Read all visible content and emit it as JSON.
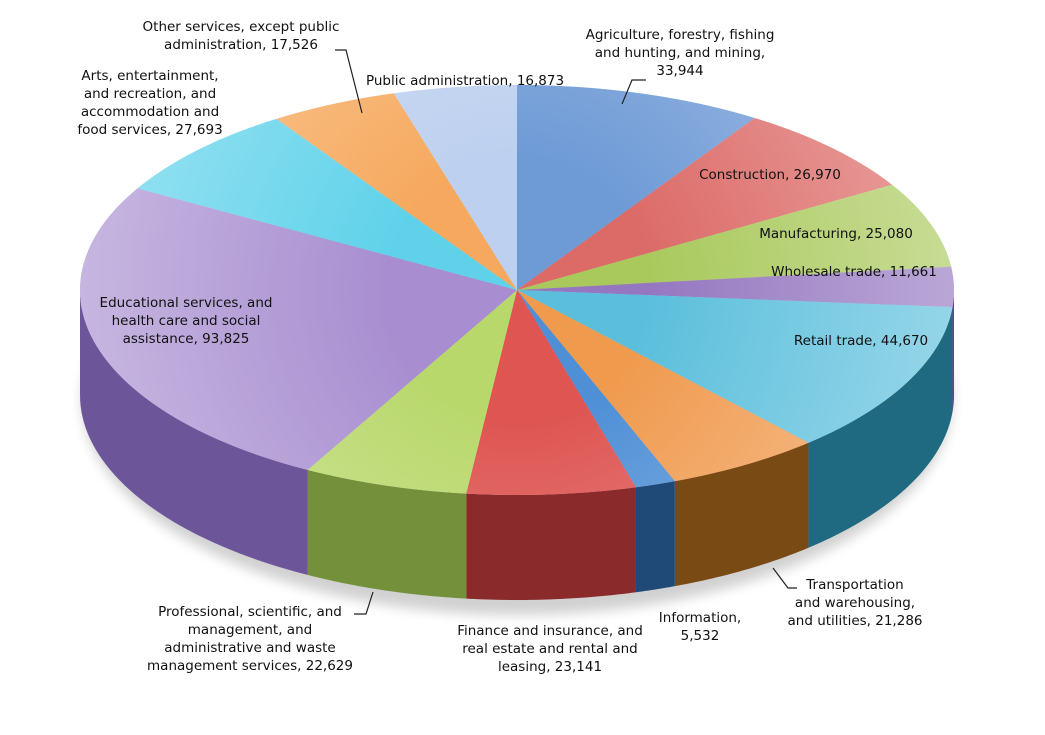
{
  "chart_data": {
    "type": "pie",
    "style": "3d-exploded-none",
    "title": "",
    "start": "top",
    "direction": "clockwise",
    "categories": [
      "Agriculture, forestry, fishing and hunting, and mining",
      "Construction",
      "Manufacturing",
      "Wholesale trade",
      "Retail trade",
      "Transportation and warehousing, and utilities",
      "Information",
      "Finance and insurance, and real estate and rental and leasing",
      "Professional, scientific, and management, and administrative and waste management services",
      "Educational services, and health care and social assistance",
      "Arts, entertainment, and recreation, and accommodation and food services",
      "Other services, except public administration",
      "Public administration"
    ],
    "values": [
      33944,
      26970,
      25080,
      11661,
      44670,
      21286,
      5532,
      23141,
      22629,
      93825,
      27693,
      17526,
      16873
    ],
    "labels": [
      "Agriculture, forestry, fishing\nand hunting, and mining,\n33,944",
      "Construction, 26,970",
      "Manufacturing, 25,080",
      "Wholesale trade, 11,661",
      "Retail trade, 44,670",
      "Transportation\nand warehousing,\nand utilities, 21,286",
      "Information,\n5,532",
      "Finance and insurance, and\nreal estate and rental and\nleasing, 23,141",
      "Professional, scientific, and\nmanagement, and\nadministrative and waste\nmanagement services, 22,629",
      "Educational services, and\nhealth care and social\nassistance, 93,825",
      "Arts, entertainment,\nand recreation, and\naccommodation and\nfood services, 27,693",
      "Other services, except public\nadministration, 17,526",
      "Public administration, 16,873"
    ],
    "colors": [
      "#6e9ad6",
      "#dc6a67",
      "#a9c95c",
      "#9577c0",
      "#5bbfdc",
      "#f09a4e",
      "#4e8fd6",
      "#de5552",
      "#b9d86c",
      "#a88ed0",
      "#5fd2ea",
      "#f6a95e",
      "#bdd0ef"
    ],
    "side_colors": [
      "#3f6aa8",
      "#9c3533",
      "#6f8a33",
      "#5e4488",
      "#1f6a80",
      "#7a4a14",
      "#1f4a78",
      "#8a2a2a",
      "#74903a",
      "#6d5599",
      "#2a8aa8",
      "#b06a2a",
      "#8ea2c8"
    ]
  }
}
